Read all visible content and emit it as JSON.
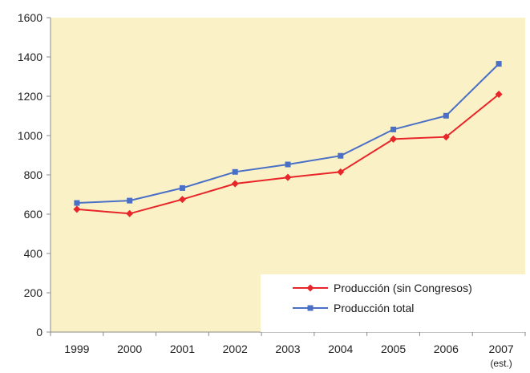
{
  "chart_data": {
    "type": "line",
    "title": "",
    "xlabel": "",
    "ylabel": "",
    "categories": [
      "1999",
      "2000",
      "2001",
      "2002",
      "2003",
      "2004",
      "2005",
      "2006",
      "2007"
    ],
    "category_sublabels": [
      "",
      "",
      "",
      "",
      "",
      "",
      "",
      "",
      "(est.)"
    ],
    "ylim": [
      0,
      1600
    ],
    "yticks": [
      0,
      200,
      400,
      600,
      800,
      1000,
      1200,
      1400,
      1600
    ],
    "ytick_labels": [
      "0",
      "200",
      "400",
      "600",
      "800",
      "1000",
      "1200",
      "1400",
      "1600"
    ],
    "grid": false,
    "legend_position": "bottom-right",
    "plot_background": "#fbf1c6",
    "series": [
      {
        "name": "Producción (sin Congresos)",
        "color": "#e8262a",
        "marker": "diamond",
        "values": [
          625,
          603,
          675,
          755,
          787,
          815,
          982,
          993,
          1210
        ]
      },
      {
        "name": "Producción total",
        "color": "#4a6fc6",
        "marker": "square",
        "values": [
          657,
          669,
          733,
          815,
          853,
          897,
          1031,
          1101,
          1365
        ]
      }
    ]
  }
}
